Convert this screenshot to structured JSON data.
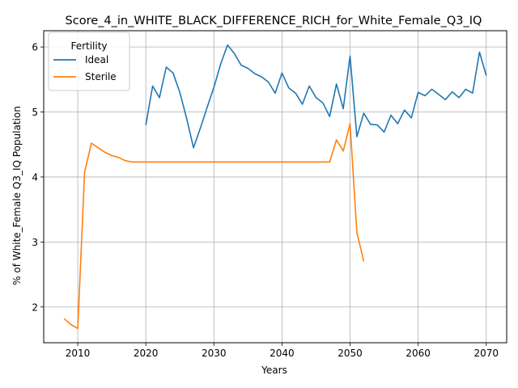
{
  "chart_data": {
    "type": "line",
    "title": "Score_4_in_WHITE_BLACK_DIFFERENCE_RICH_for_White_Female_Q3_IQ",
    "xlabel": "Years",
    "ylabel": "% of White_Female Q3_IQ Population",
    "xlim": [
      2005,
      2073
    ],
    "ylim": [
      1.45,
      6.25
    ],
    "xticks": [
      2010,
      2020,
      2030,
      2040,
      2050,
      2060,
      2070
    ],
    "yticks": [
      2,
      3,
      4,
      5,
      6
    ],
    "grid": true,
    "legend": {
      "title": "Fertility",
      "placement": "top-left"
    },
    "series": [
      {
        "name": "Ideal",
        "color": "#1f77b4",
        "x": [
          2020,
          2021,
          2022,
          2023,
          2024,
          2025,
          2026,
          2027,
          2028,
          2029,
          2030,
          2031,
          2032,
          2033,
          2034,
          2035,
          2036,
          2037,
          2038,
          2039,
          2040,
          2041,
          2042,
          2043,
          2044,
          2045,
          2046,
          2047,
          2048,
          2049,
          2050,
          2051,
          2052,
          2053,
          2054,
          2055,
          2056,
          2057,
          2058,
          2059,
          2060,
          2061,
          2062,
          2063,
          2064,
          2065,
          2066,
          2067,
          2068,
          2069,
          2070
        ],
        "y": [
          4.8,
          5.4,
          5.22,
          5.69,
          5.6,
          5.3,
          4.9,
          4.45,
          4.75,
          5.07,
          5.38,
          5.74,
          6.03,
          5.9,
          5.72,
          5.67,
          5.59,
          5.54,
          5.46,
          5.29,
          5.6,
          5.37,
          5.29,
          5.12,
          5.4,
          5.22,
          5.14,
          4.93,
          5.43,
          5.05,
          5.86,
          4.62,
          4.98,
          4.81,
          4.8,
          4.69,
          4.95,
          4.82,
          5.03,
          4.91,
          5.3,
          5.25,
          5.35,
          5.27,
          5.19,
          5.31,
          5.22,
          5.35,
          5.29,
          5.92,
          5.56
        ]
      },
      {
        "name": "Sterile",
        "color": "#ff7f0e",
        "x": [
          2008,
          2009,
          2010,
          2011,
          2012,
          2013,
          2014,
          2015,
          2016,
          2017,
          2018,
          2019,
          2020,
          2021,
          2022,
          2023,
          2024,
          2025,
          2026,
          2027,
          2028,
          2029,
          2030,
          2031,
          2032,
          2033,
          2034,
          2035,
          2036,
          2037,
          2038,
          2039,
          2040,
          2041,
          2042,
          2043,
          2044,
          2045,
          2046,
          2047,
          2048,
          2049,
          2050,
          2051,
          2052
        ],
        "y": [
          1.82,
          1.73,
          1.67,
          4.07,
          4.52,
          4.45,
          4.38,
          4.33,
          4.3,
          4.25,
          4.23,
          4.23,
          4.23,
          4.23,
          4.23,
          4.23,
          4.23,
          4.23,
          4.23,
          4.23,
          4.23,
          4.23,
          4.23,
          4.23,
          4.23,
          4.23,
          4.23,
          4.23,
          4.23,
          4.23,
          4.23,
          4.23,
          4.23,
          4.23,
          4.23,
          4.23,
          4.23,
          4.23,
          4.23,
          4.23,
          4.57,
          4.4,
          4.82,
          3.15,
          2.7
        ]
      }
    ]
  }
}
